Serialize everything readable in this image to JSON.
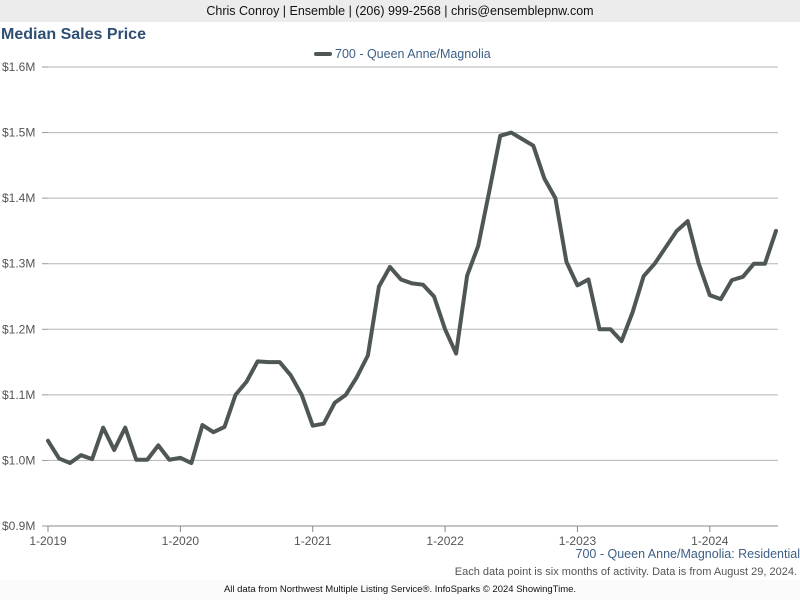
{
  "header": {
    "contact_line": "Chris Conroy | Ensemble | (206) 999-2568 | chris@ensemblepnw.com"
  },
  "chart_data": {
    "type": "line",
    "title": "Median Sales Price",
    "xlabel": "",
    "ylabel": "",
    "ylim": [
      900000,
      1600000
    ],
    "y_ticks": [
      900000,
      1000000,
      1100000,
      1200000,
      1300000,
      1400000,
      1500000,
      1600000
    ],
    "y_tick_labels": [
      "$0.9M",
      "$1.0M",
      "$1.1M",
      "$1.2M",
      "$1.3M",
      "$1.4M",
      "$1.5M",
      "$1.6M"
    ],
    "x_tick_labels": [
      "1-2019",
      "1-2020",
      "1-2021",
      "1-2022",
      "1-2023",
      "1-2024"
    ],
    "x_range_months": "1-2019 to 7-2024",
    "grid": "horizontal",
    "legend_position": "top-center",
    "color": "#4f5656",
    "series": [
      {
        "name": "700 - Queen Anne/Magnolia",
        "x": [
          "1-2019",
          "2-2019",
          "3-2019",
          "4-2019",
          "5-2019",
          "6-2019",
          "7-2019",
          "8-2019",
          "9-2019",
          "10-2019",
          "11-2019",
          "12-2019",
          "1-2020",
          "2-2020",
          "3-2020",
          "4-2020",
          "5-2020",
          "6-2020",
          "7-2020",
          "8-2020",
          "9-2020",
          "10-2020",
          "11-2020",
          "12-2020",
          "1-2021",
          "2-2021",
          "3-2021",
          "4-2021",
          "5-2021",
          "6-2021",
          "7-2021",
          "8-2021",
          "9-2021",
          "10-2021",
          "11-2021",
          "12-2021",
          "1-2022",
          "2-2022",
          "3-2022",
          "4-2022",
          "5-2022",
          "6-2022",
          "7-2022",
          "8-2022",
          "9-2022",
          "10-2022",
          "11-2022",
          "12-2022",
          "1-2023",
          "2-2023",
          "3-2023",
          "4-2023",
          "5-2023",
          "6-2023",
          "7-2023",
          "8-2023",
          "9-2023",
          "10-2023",
          "11-2023",
          "12-2023",
          "1-2024",
          "2-2024",
          "3-2024",
          "4-2024",
          "5-2024",
          "6-2024",
          "7-2024"
        ],
        "values": [
          1030000,
          1003000,
          996000,
          1008000,
          1002000,
          1050000,
          1016000,
          1050000,
          1001000,
          1001000,
          1023000,
          1001000,
          1004000,
          996000,
          1054000,
          1043000,
          1051000,
          1100000,
          1120000,
          1151000,
          1150000,
          1150000,
          1130000,
          1100000,
          1053000,
          1056000,
          1088000,
          1100000,
          1127000,
          1160000,
          1265000,
          1295000,
          1276000,
          1270000,
          1268000,
          1250000,
          1200000,
          1163000,
          1282000,
          1327000,
          1410000,
          1495000,
          1500000,
          1490000,
          1480000,
          1430000,
          1400000,
          1303000,
          1267000,
          1276000,
          1200000,
          1200000,
          1182000,
          1226000,
          1281000,
          1300000,
          1325000,
          1350000,
          1365000,
          1300000,
          1252000,
          1246000,
          1275000,
          1280000,
          1300000,
          1300000,
          1350000
        ]
      }
    ]
  },
  "footer": {
    "area_label": "700 - Queen Anne/Magnolia: Residential",
    "note": "Each data point is six months of activity. Data is from August 29, 2024.",
    "source": "All data from Northwest Multiple Listing Service®. InfoSparks © 2024 ShowingTime."
  }
}
